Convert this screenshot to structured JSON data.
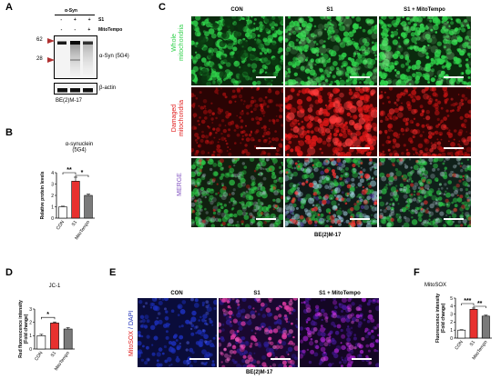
{
  "panels": {
    "A": "A",
    "B": "B",
    "C": "C",
    "D": "D",
    "E": "E",
    "F": "F"
  },
  "blot": {
    "header": "α-Syn",
    "rows": [
      {
        "label": "S1",
        "marks": [
          "-",
          "+",
          "+"
        ]
      },
      {
        "label": "MitoTempo",
        "marks": [
          "-",
          "-",
          "+"
        ]
      }
    ],
    "mw_markers": [
      "62",
      "28"
    ],
    "protein_label": "α-Syn (5G4)",
    "loading_label": "β-actin",
    "cell_line": "BE(2)M-17"
  },
  "microscopy_c": {
    "columns": [
      "CON",
      "S1",
      "S1 + MitoTempo"
    ],
    "row_labels": [
      "Whole\nmitochondria",
      "Damaged\nmitochondria",
      "MERGE"
    ],
    "row_label_lines": [
      [
        "Whole",
        "mitochondria"
      ],
      [
        "Damaged",
        "mitochondria"
      ],
      [
        "MERGE"
      ]
    ],
    "cell_line": "BE(2)M-17"
  },
  "microscopy_e": {
    "columns": [
      "CON",
      "S1",
      "S1 + MitoTempo"
    ],
    "stain_label_a": "MitoSOX",
    "stain_sep": " / ",
    "stain_label_b": "DAPI",
    "cell_line": "BE(2)M-17"
  },
  "chart_data": [
    {
      "type": "bar",
      "title": "α-synuclein\n(5G4)",
      "title_lines": [
        "α-synuclein",
        "(5G4)"
      ],
      "ylabel": "Relative protein levels",
      "categories": [
        "CON",
        "S1",
        "MitoTempo"
      ],
      "values": [
        1.0,
        3.25,
        2.0
      ],
      "errors": [
        0.05,
        0.35,
        0.12
      ],
      "ylim": [
        0,
        4
      ],
      "yticks": [
        "0",
        "1",
        "2",
        "3",
        "4"
      ],
      "significance": [
        "**",
        "*"
      ],
      "colors": [
        "#ffffff",
        "#e8312f",
        "#7a7a7a"
      ]
    },
    {
      "type": "bar",
      "title": "JC-1",
      "ylabel": "Red fluorescence intensity\n(Fold change)",
      "ylabel_lines": [
        "Red fluorescence intensity",
        "(Fold change)"
      ],
      "categories": [
        "CON",
        "S1",
        "MitoTempo"
      ],
      "values": [
        1.0,
        1.95,
        1.5
      ],
      "errors": [
        0.1,
        0.08,
        0.1
      ],
      "ylim": [
        0,
        3
      ],
      "yticks": [
        "0",
        "1",
        "2",
        "3"
      ],
      "significance": [
        "*"
      ],
      "colors": [
        "#ffffff",
        "#e8312f",
        "#7a7a7a"
      ]
    },
    {
      "type": "bar",
      "title": "MitoSOX",
      "ylabel": "Fluorescence intensity\n(Fold change)",
      "ylabel_lines": [
        "Fluorescence intensity",
        "(Fold change)"
      ],
      "categories": [
        "CON",
        "S1",
        "MitoTempo"
      ],
      "values": [
        1.0,
        3.6,
        2.75
      ],
      "errors": [
        0.05,
        0.15,
        0.12
      ],
      "ylim": [
        0,
        5
      ],
      "yticks": [
        "0",
        "1",
        "2",
        "3",
        "4",
        "5"
      ],
      "significance": [
        "***",
        "**"
      ],
      "colors": [
        "#ffffff",
        "#e8312f",
        "#7a7a7a"
      ]
    }
  ],
  "colors": {
    "green": "#2fd14a",
    "red": "#e01818",
    "blue": "#1c2fb8",
    "magenta": "#e23ca6",
    "purple": "#a020c8",
    "bar_red": "#e8312f",
    "bar_gray": "#7a7a7a"
  }
}
